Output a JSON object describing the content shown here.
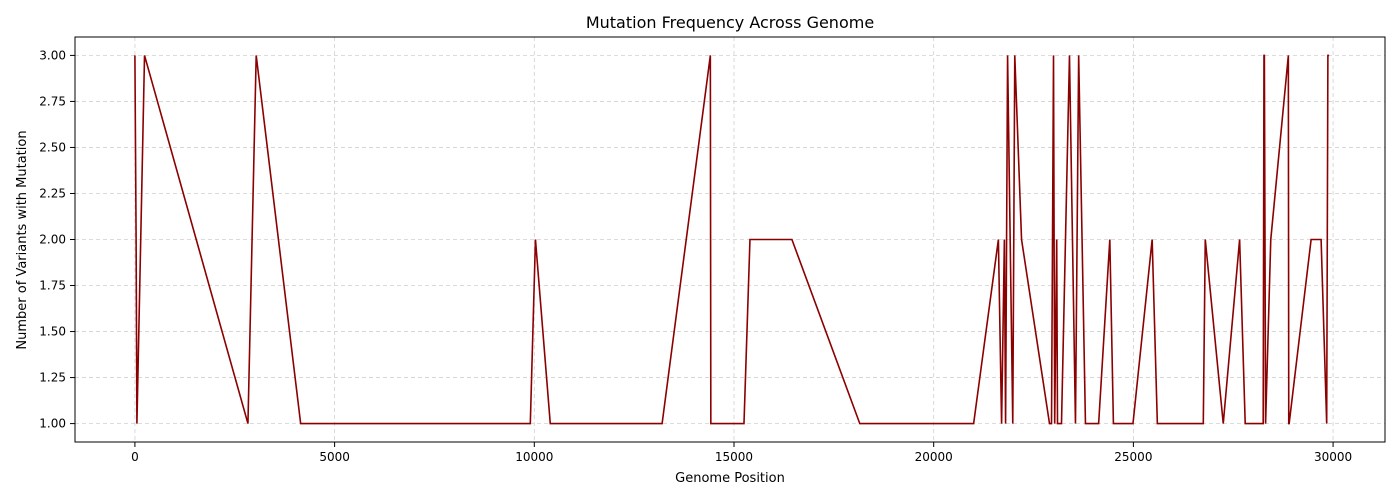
{
  "chart_data": {
    "type": "line",
    "title": "Mutation Frequency Across Genome",
    "xlabel": "Genome Position",
    "ylabel": "Number of Variants with Mutation",
    "xlim": [
      -1500,
      31300
    ],
    "ylim": [
      0.9,
      3.1
    ],
    "xticks": [
      0,
      5000,
      10000,
      15000,
      20000,
      25000,
      30000
    ],
    "yticks": [
      1.0,
      1.25,
      1.5,
      1.75,
      2.0,
      2.25,
      2.5,
      2.75,
      3.0
    ],
    "xtick_labels": [
      "0",
      "5000",
      "10000",
      "15000",
      "20000",
      "25000",
      "30000"
    ],
    "ytick_labels": [
      "1.00",
      "1.25",
      "1.50",
      "1.75",
      "2.00",
      "2.25",
      "2.50",
      "2.75",
      "3.00"
    ],
    "grid": true,
    "series_color": "#8b0000",
    "series": [
      {
        "x": [
          0,
          30,
          50,
          241,
          2830,
          3037,
          4150,
          9900,
          10029,
          10400,
          13200,
          14408,
          14420,
          15250,
          15400,
          16450,
          18150,
          21000,
          21620,
          21700,
          21770,
          21800,
          21850,
          21980,
          22030,
          22200,
          22900,
          22950,
          23000,
          23030,
          23080,
          23100,
          23200,
          23400,
          23550,
          23630,
          23800,
          24130,
          24410,
          24500,
          24990,
          25470,
          25600,
          26750,
          26800,
          27250,
          27660,
          27800,
          28250,
          28270,
          28280,
          28310,
          28440,
          28880,
          28890,
          28900,
          29450,
          29700,
          29840,
          29870,
          29900
        ],
        "y": [
          3,
          2,
          1,
          3,
          1,
          3,
          1,
          1,
          2,
          1,
          1,
          3,
          1,
          1,
          2,
          2,
          1,
          1,
          2,
          1,
          2,
          1,
          3,
          1,
          3,
          2,
          1,
          1,
          3,
          1,
          2,
          1,
          1,
          3,
          1,
          3,
          1,
          1,
          2,
          1,
          1,
          2,
          1,
          1,
          2,
          1,
          2,
          1,
          1,
          3,
          3,
          1,
          2,
          3,
          1,
          1,
          2,
          2,
          1,
          3,
          3
        ]
      }
    ]
  }
}
